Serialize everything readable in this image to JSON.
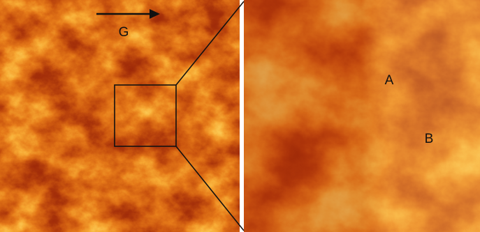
{
  "labels": {
    "gravity": "G",
    "a": "A",
    "b": "B"
  }
}
